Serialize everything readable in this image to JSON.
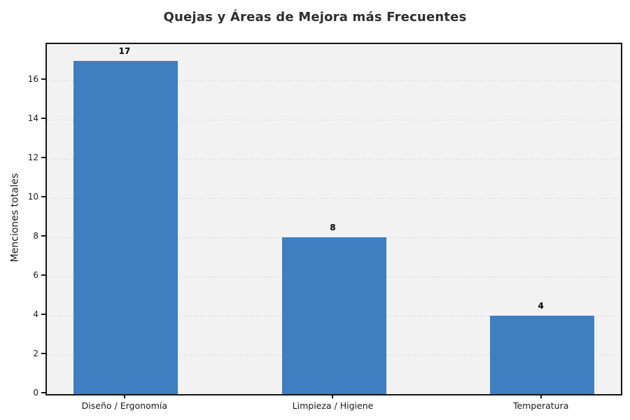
{
  "chart_data": {
    "type": "bar",
    "title": "Quejas y Áreas de Mejora más Frecuentes",
    "xlabel": "",
    "ylabel": "Menciones totales",
    "categories": [
      "Diseño / Ergonomía",
      "Limpieza / Higiene",
      "Temperatura"
    ],
    "values": [
      17,
      8,
      4
    ],
    "bar_value_labels": [
      "17",
      "8",
      "4"
    ],
    "yticks": [
      0,
      2,
      4,
      6,
      8,
      10,
      12,
      14,
      16
    ],
    "ylim": [
      0,
      17.85
    ],
    "grid": "horizontal-dashed",
    "legend": "none",
    "colors": {
      "bar": "#3e7ec1",
      "plot_background": "#f2f2f2",
      "figure_background": "#ffffff",
      "gridline": "#d4d4d4",
      "spine": "#141414",
      "title_text": "#2e2e2e",
      "tick_text": "#1a1a1a"
    },
    "layout_hints": {
      "bar_centers_frac": [
        0.1376,
        0.5006,
        0.863
      ],
      "bar_width_frac": 0.1815
    }
  }
}
